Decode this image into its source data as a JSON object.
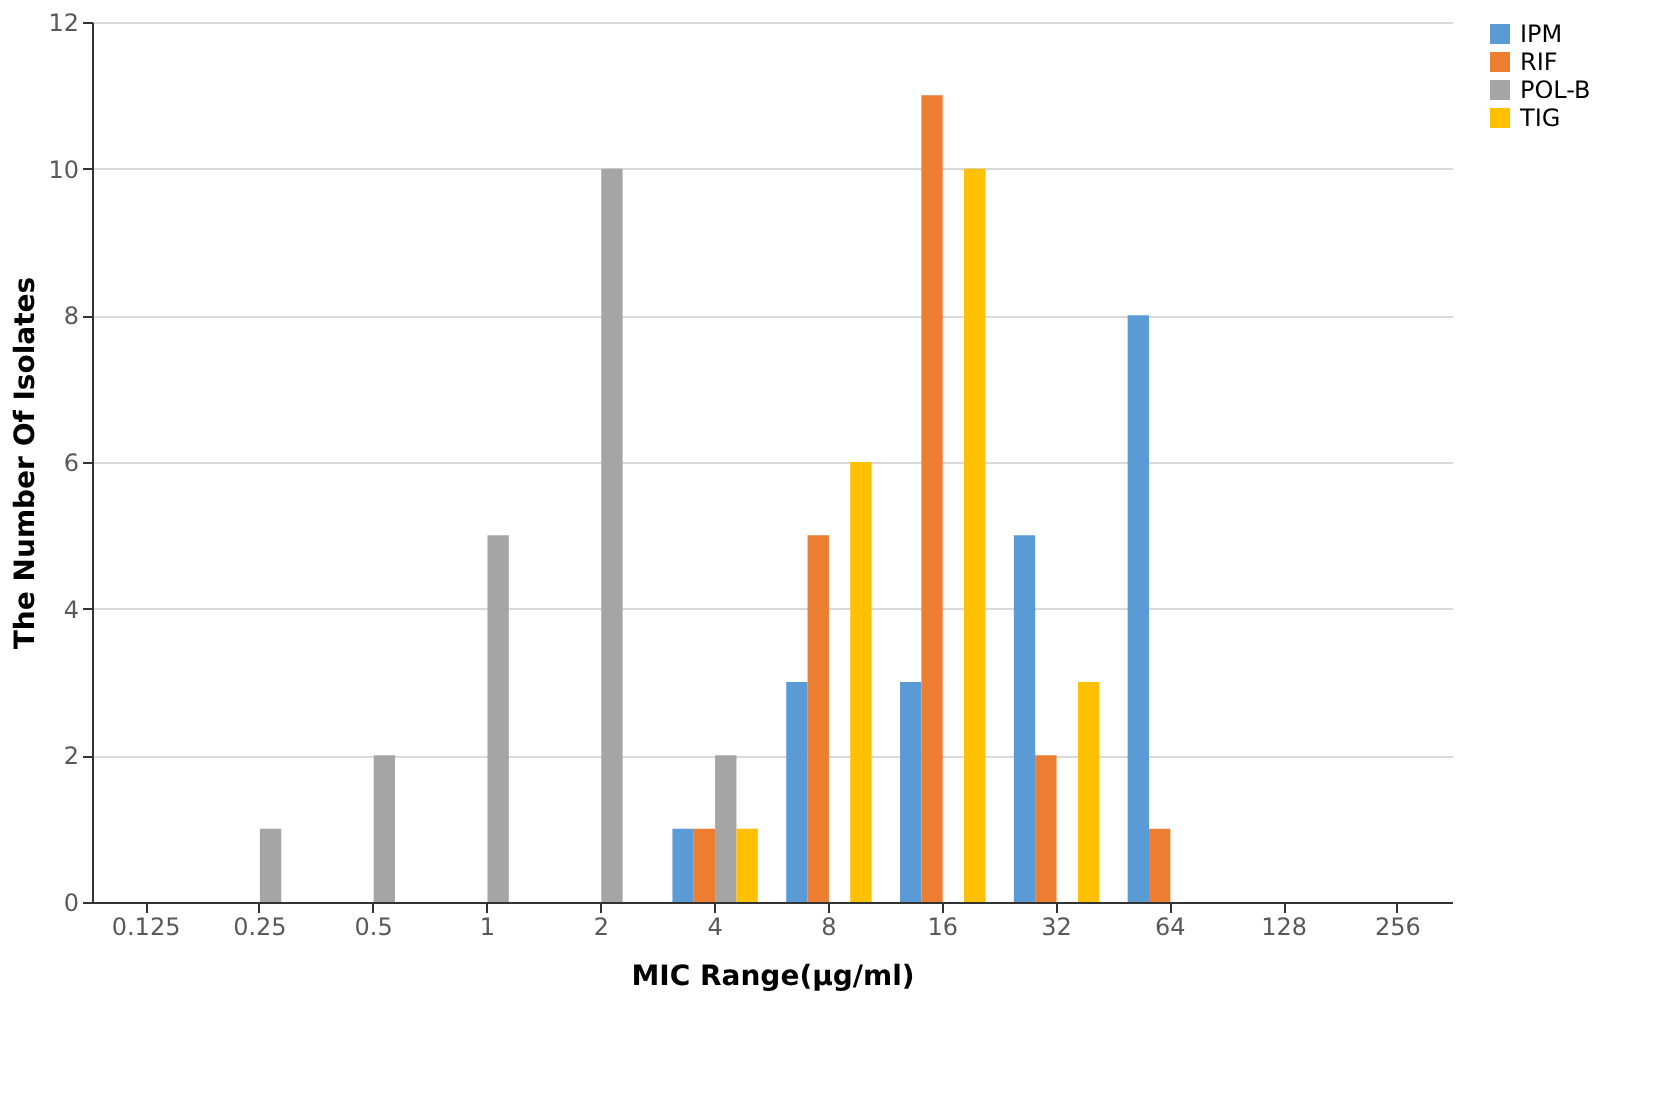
{
  "chart_data": {
    "type": "bar",
    "xlabel": "MIC Range(µg/ml)",
    "ylabel": "The Number Of Isolates",
    "categories": [
      "0.125",
      "0.25",
      "0.5",
      "1",
      "2",
      "4",
      "8",
      "16",
      "32",
      "64",
      "128",
      "256"
    ],
    "series": [
      {
        "name": "IPM",
        "color": "#5b9bd5",
        "values": [
          0,
          0,
          0,
          0,
          0,
          1,
          3,
          3,
          5,
          8,
          0,
          0
        ]
      },
      {
        "name": "RIF",
        "color": "#ed7d31",
        "values": [
          0,
          0,
          0,
          0,
          0,
          1,
          5,
          11,
          2,
          1,
          0,
          0
        ]
      },
      {
        "name": "POL-B",
        "color": "#a5a5a5",
        "values": [
          0,
          1,
          2,
          5,
          10,
          2,
          0,
          0,
          0,
          0,
          0,
          0
        ]
      },
      {
        "name": "TIG",
        "color": "#ffc000",
        "values": [
          0,
          0,
          0,
          0,
          0,
          1,
          6,
          10,
          3,
          0,
          0,
          0
        ]
      }
    ],
    "ylim": [
      0,
      12
    ],
    "yticks": [
      0,
      2,
      4,
      6,
      8,
      10,
      12
    ],
    "grid": "y",
    "legend": "right"
  }
}
